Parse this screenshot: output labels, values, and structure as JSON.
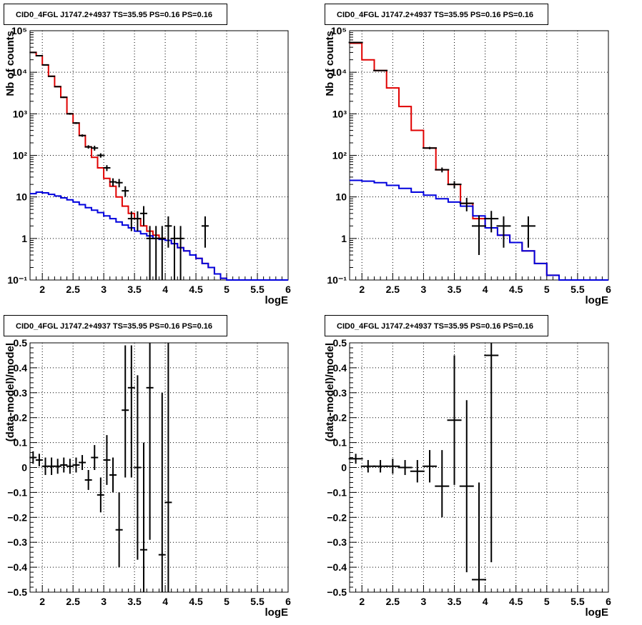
{
  "colors": {
    "model_total": "#e00000",
    "model_source": "#0000dd",
    "data": "#000000"
  },
  "chart_data": [
    {
      "type": "line",
      "title": "CID0_4FGL J1747.2+4937 TS=35.95 PS=0.16 PS=0.16",
      "xlabel": "logE",
      "ylabel": "Nb of counts",
      "xlim": [
        1.8,
        6.0
      ],
      "ylim": [
        0.1,
        100000
      ],
      "log_y": true,
      "grid": true,
      "x_ticks": [
        2,
        2.5,
        3,
        3.5,
        4,
        4.5,
        5,
        5.5,
        6
      ],
      "x_tick_labels": [
        "2",
        "2.5",
        "3",
        "3.5",
        "4",
        "4.5",
        "5",
        "5.5",
        "6"
      ],
      "y_ticks": [
        0.1,
        1,
        10,
        100,
        1000,
        10000,
        100000
      ],
      "y_tick_labels": [
        "10⁻¹",
        "1",
        "10",
        "10²",
        "10³",
        "10⁴",
        "10⁵"
      ],
      "series": [
        {
          "type": "step",
          "edges": [
            1.8,
            1.9,
            2.0,
            2.1,
            2.2,
            2.3,
            2.4,
            2.5,
            2.6,
            2.7,
            2.8,
            2.9,
            3.0,
            3.1,
            3.2,
            3.3,
            3.4,
            3.5,
            3.6,
            3.7,
            3.8,
            3.9,
            4.0,
            4.1,
            4.2,
            4.3,
            4.4,
            4.5,
            4.6,
            4.7,
            4.8,
            4.9,
            5.0,
            5.1,
            5.2,
            5.3,
            5.4,
            5.5,
            5.6,
            5.7,
            5.8,
            5.9,
            6.0
          ],
          "values": [
            30000,
            25000,
            15000,
            8000,
            4500,
            2500,
            1000,
            600,
            300,
            160,
            90,
            50,
            28,
            18,
            10,
            6,
            4,
            3,
            2,
            1.5,
            1.2,
            1.0,
            0.9,
            0.75,
            0.6,
            0.5,
            0.4,
            0.33,
            0.25,
            0.2,
            0.14,
            0.11,
            0.1,
            0.1,
            0.1,
            0.1,
            0.1,
            0.1,
            0.1,
            0.1,
            0.1,
            0.1
          ]
        },
        {
          "type": "step",
          "edges": [
            1.8,
            1.9,
            2.0,
            2.1,
            2.2,
            2.3,
            2.4,
            2.5,
            2.6,
            2.7,
            2.8,
            2.9,
            3.0,
            3.1,
            3.2,
            3.3,
            3.4,
            3.5,
            3.6,
            3.7,
            3.8,
            3.9,
            4.0,
            4.1,
            4.2,
            4.3,
            4.4,
            4.5,
            4.6,
            4.7,
            4.8,
            4.9,
            5.0,
            5.1,
            5.2,
            5.3,
            5.4,
            5.5,
            5.6,
            5.7,
            5.8,
            5.9,
            6.0
          ],
          "values": [
            12,
            13,
            12.5,
            11.5,
            10.5,
            9.5,
            8.5,
            7.5,
            6.5,
            5.5,
            4.8,
            4.2,
            3.5,
            3,
            2.5,
            2.1,
            1.8,
            1.5,
            1.3,
            1.15,
            1.0,
            0.95,
            0.9,
            0.75,
            0.6,
            0.5,
            0.4,
            0.33,
            0.25,
            0.2,
            0.14,
            0.11,
            0.1,
            0.1,
            0.1,
            0.1,
            0.1,
            0.1,
            0.1,
            0.1,
            0.1,
            0.1
          ]
        },
        {
          "type": "errorbar",
          "points": [
            {
              "x": 1.85,
              "y": 30000,
              "lo": 29000,
              "hi": 31000
            },
            {
              "x": 1.95,
              "y": 25000,
              "lo": 24000,
              "hi": 26000
            },
            {
              "x": 2.05,
              "y": 15000,
              "lo": 14500,
              "hi": 15500
            },
            {
              "x": 2.15,
              "y": 8000,
              "lo": 7800,
              "hi": 8200
            },
            {
              "x": 2.25,
              "y": 4500,
              "lo": 4400,
              "hi": 4600
            },
            {
              "x": 2.35,
              "y": 2500,
              "lo": 2400,
              "hi": 2600
            },
            {
              "x": 2.45,
              "y": 1000,
              "lo": 950,
              "hi": 1050
            },
            {
              "x": 2.55,
              "y": 600,
              "lo": 570,
              "hi": 630
            },
            {
              "x": 2.65,
              "y": 300,
              "lo": 280,
              "hi": 320
            },
            {
              "x": 2.75,
              "y": 160,
              "lo": 145,
              "hi": 175
            },
            {
              "x": 2.85,
              "y": 150,
              "lo": 130,
              "hi": 170
            },
            {
              "x": 2.95,
              "y": 100,
              "lo": 88,
              "hi": 112
            },
            {
              "x": 3.05,
              "y": 50,
              "lo": 42,
              "hi": 58
            },
            {
              "x": 3.15,
              "y": 23,
              "lo": 18,
              "hi": 28
            },
            {
              "x": 3.25,
              "y": 22,
              "lo": 17,
              "hi": 27
            },
            {
              "x": 3.35,
              "y": 14,
              "lo": 10,
              "hi": 18
            },
            {
              "x": 3.45,
              "y": 3,
              "lo": 1.5,
              "hi": 4.5
            },
            {
              "x": 3.55,
              "y": 3,
              "lo": 1.5,
              "hi": 4.5
            },
            {
              "x": 3.65,
              "y": 4,
              "lo": 2,
              "hi": 6
            },
            {
              "x": 3.75,
              "y": 1,
              "lo": 0.1,
              "hi": 2
            },
            {
              "x": 3.85,
              "y": 1,
              "lo": 0.1,
              "hi": 2
            },
            {
              "x": 3.95,
              "y": 1,
              "lo": 0.1,
              "hi": 2
            },
            {
              "x": 4.05,
              "y": 2,
              "lo": 0.6,
              "hi": 3.4
            },
            {
              "x": 4.15,
              "y": 1,
              "lo": 0.1,
              "hi": 2
            },
            {
              "x": 4.25,
              "y": 1,
              "lo": 0.1,
              "hi": 2
            },
            {
              "x": 4.65,
              "y": 2,
              "lo": 0.6,
              "hi": 3.4
            }
          ]
        }
      ]
    },
    {
      "type": "line",
      "title": "CID0_4FGL J1747.2+4937 TS=35.95 PS=0.16 PS=0.16",
      "xlabel": "logE",
      "ylabel": "Nb of counts",
      "xlim": [
        1.8,
        6.0
      ],
      "ylim": [
        0.1,
        100000
      ],
      "log_y": true,
      "grid": true,
      "x_ticks": [
        2,
        2.5,
        3,
        3.5,
        4,
        4.5,
        5,
        5.5,
        6
      ],
      "x_tick_labels": [
        "2",
        "2.5",
        "3",
        "3.5",
        "4",
        "4.5",
        "5",
        "5.5",
        "6"
      ],
      "y_ticks": [
        0.1,
        1,
        10,
        100,
        1000,
        10000,
        100000
      ],
      "y_tick_labels": [
        "10⁻¹",
        "1",
        "10",
        "10²",
        "10³",
        "10⁴",
        "10⁵"
      ],
      "series": [
        {
          "type": "step",
          "edges": [
            1.8,
            2.0,
            2.2,
            2.4,
            2.6,
            2.8,
            3.0,
            3.2,
            3.4,
            3.6,
            3.8,
            4.0,
            4.2,
            4.4,
            4.6,
            4.8,
            5.0,
            5.2,
            5.4,
            5.6,
            5.8,
            6.0
          ],
          "values": [
            50000,
            20000,
            11000,
            4200,
            1500,
            400,
            150,
            45,
            20,
            7,
            3,
            1.8,
            1.2,
            0.8,
            0.5,
            0.25,
            0.13,
            0.1,
            0.1,
            0.1,
            0.1
          ]
        },
        {
          "type": "step",
          "edges": [
            1.8,
            2.0,
            2.2,
            2.4,
            2.6,
            2.8,
            3.0,
            3.2,
            3.4,
            3.6,
            3.8,
            4.0,
            4.2,
            4.4,
            4.6,
            4.8,
            5.0,
            5.2,
            5.4,
            5.6,
            5.8,
            6.0
          ],
          "values": [
            25,
            24,
            22,
            19,
            16,
            13,
            11,
            9,
            7.5,
            6,
            3.5,
            1.8,
            1.2,
            0.8,
            0.5,
            0.25,
            0.13,
            0.1,
            0.1,
            0.1,
            0.1
          ]
        },
        {
          "type": "errorbar",
          "points": [
            {
              "x": 1.9,
              "y": 52000,
              "lo": 51000,
              "hi": 53000
            },
            {
              "x": 2.3,
              "y": 11000,
              "lo": 10800,
              "hi": 11200
            },
            {
              "x": 3.1,
              "y": 150,
              "lo": 140,
              "hi": 160
            },
            {
              "x": 3.3,
              "y": 45,
              "lo": 39,
              "hi": 51
            },
            {
              "x": 3.5,
              "y": 20,
              "lo": 16,
              "hi": 24
            },
            {
              "x": 3.7,
              "y": 7,
              "lo": 4.5,
              "hi": 9.5
            },
            {
              "x": 3.9,
              "y": 2,
              "lo": 0.4,
              "hi": 3.6
            },
            {
              "x": 4.1,
              "y": 3,
              "lo": 1.4,
              "hi": 4.6
            },
            {
              "x": 4.3,
              "y": 2,
              "lo": 0.6,
              "hi": 3.4
            },
            {
              "x": 4.7,
              "y": 2,
              "lo": 0.6,
              "hi": 3.4
            }
          ]
        }
      ]
    },
    {
      "type": "scatter",
      "title": "CID0_4FGL J1747.2+4937 TS=35.95 PS=0.16 PS=0.16",
      "xlabel": "logE",
      "ylabel": "(data-model)/model",
      "xlim": [
        1.8,
        6.0
      ],
      "ylim": [
        -0.5,
        0.5
      ],
      "log_y": false,
      "grid": true,
      "x_ticks": [
        2,
        2.5,
        3,
        3.5,
        4,
        4.5,
        5,
        5.5,
        6
      ],
      "x_tick_labels": [
        "2",
        "2.5",
        "3",
        "3.5",
        "4",
        "4.5",
        "5",
        "5.5",
        "6"
      ],
      "y_ticks": [
        -0.5,
        -0.4,
        -0.3,
        -0.2,
        -0.1,
        0,
        0.1,
        0.2,
        0.3,
        0.4,
        0.5
      ],
      "y_tick_labels": [
        "−0.5",
        "−0.4",
        "−0.3",
        "−0.2",
        "−0.1",
        "0",
        "0.1",
        "0.2",
        "0.3",
        "0.4",
        "0.5"
      ],
      "series": [
        {
          "type": "errorbar",
          "points": [
            {
              "x": 1.85,
              "y": 0.04,
              "lo": 0.015,
              "hi": 0.065
            },
            {
              "x": 1.95,
              "y": 0.03,
              "lo": 0.005,
              "hi": 0.055
            },
            {
              "x": 2.05,
              "y": 0.005,
              "lo": -0.03,
              "hi": 0.04
            },
            {
              "x": 2.15,
              "y": 0.005,
              "lo": -0.03,
              "hi": 0.04
            },
            {
              "x": 2.25,
              "y": 0.005,
              "lo": -0.025,
              "hi": 0.035
            },
            {
              "x": 2.35,
              "y": 0.01,
              "lo": -0.02,
              "hi": 0.04
            },
            {
              "x": 2.45,
              "y": 0.005,
              "lo": -0.025,
              "hi": 0.035
            },
            {
              "x": 2.55,
              "y": 0.01,
              "lo": -0.02,
              "hi": 0.04
            },
            {
              "x": 2.65,
              "y": 0.02,
              "lo": -0.01,
              "hi": 0.05
            },
            {
              "x": 2.75,
              "y": -0.05,
              "lo": -0.09,
              "hi": -0.01
            },
            {
              "x": 2.85,
              "y": 0.04,
              "lo": -0.01,
              "hi": 0.09
            },
            {
              "x": 2.95,
              "y": -0.11,
              "lo": -0.18,
              "hi": -0.04
            },
            {
              "x": 3.05,
              "y": 0.03,
              "lo": -0.07,
              "hi": 0.13
            },
            {
              "x": 3.15,
              "y": -0.03,
              "lo": -0.1,
              "hi": 0.04
            },
            {
              "x": 3.25,
              "y": -0.25,
              "lo": -0.4,
              "hi": -0.1
            },
            {
              "x": 3.35,
              "y": 0.23,
              "lo": -0.04,
              "hi": 0.49
            },
            {
              "x": 3.45,
              "y": 0.32,
              "lo": -0.04,
              "hi": 0.49
            },
            {
              "x": 3.55,
              "y": 0.0,
              "lo": -0.37,
              "hi": 0.37
            },
            {
              "x": 3.65,
              "y": -0.33,
              "lo": -0.5,
              "hi": 0.1
            },
            {
              "x": 3.75,
              "y": 0.32,
              "lo": -0.29,
              "hi": 0.5
            },
            {
              "x": 3.95,
              "y": -0.35,
              "lo": -0.5,
              "hi": 0.3
            },
            {
              "x": 4.05,
              "y": -0.14,
              "lo": -0.5,
              "hi": 0.5
            }
          ]
        }
      ]
    },
    {
      "type": "scatter",
      "title": "CID0_4FGL J1747.2+4937 TS=35.95 PS=0.16 PS=0.16",
      "xlabel": "logE",
      "ylabel": "(data-model)/model",
      "xlim": [
        1.8,
        6.0
      ],
      "ylim": [
        -0.5,
        0.5
      ],
      "log_y": false,
      "grid": true,
      "x_ticks": [
        2,
        2.5,
        3,
        3.5,
        4,
        4.5,
        5,
        5.5,
        6
      ],
      "x_tick_labels": [
        "2",
        "2.5",
        "3",
        "3.5",
        "4",
        "4.5",
        "5",
        "5.5",
        "6"
      ],
      "y_ticks": [
        -0.5,
        -0.4,
        -0.3,
        -0.2,
        -0.1,
        0,
        0.1,
        0.2,
        0.3,
        0.4,
        0.5
      ],
      "y_tick_labels": [
        "−0.5",
        "−0.4",
        "−0.3",
        "−0.2",
        "−0.1",
        "0",
        "0.1",
        "0.2",
        "0.3",
        "0.4",
        "0.5"
      ],
      "series": [
        {
          "type": "errorbar",
          "points": [
            {
              "x": 1.9,
              "y": 0.035,
              "lo": 0.015,
              "hi": 0.055
            },
            {
              "x": 2.1,
              "y": 0.005,
              "lo": -0.02,
              "hi": 0.03
            },
            {
              "x": 2.3,
              "y": 0.005,
              "lo": -0.02,
              "hi": 0.03
            },
            {
              "x": 2.5,
              "y": 0.005,
              "lo": -0.025,
              "hi": 0.035
            },
            {
              "x": 2.7,
              "y": 0.0,
              "lo": -0.03,
              "hi": 0.03
            },
            {
              "x": 2.9,
              "y": -0.015,
              "lo": -0.06,
              "hi": 0.03
            },
            {
              "x": 3.1,
              "y": 0.005,
              "lo": -0.06,
              "hi": 0.07
            },
            {
              "x": 3.3,
              "y": -0.075,
              "lo": -0.2,
              "hi": 0.07
            },
            {
              "x": 3.5,
              "y": 0.19,
              "lo": -0.07,
              "hi": 0.45
            },
            {
              "x": 3.7,
              "y": -0.075,
              "lo": -0.42,
              "hi": 0.27
            },
            {
              "x": 3.9,
              "y": -0.45,
              "lo": -0.5,
              "hi": -0.06
            },
            {
              "x": 4.1,
              "y": 0.45,
              "lo": -0.38,
              "hi": 0.5
            }
          ]
        }
      ]
    }
  ]
}
